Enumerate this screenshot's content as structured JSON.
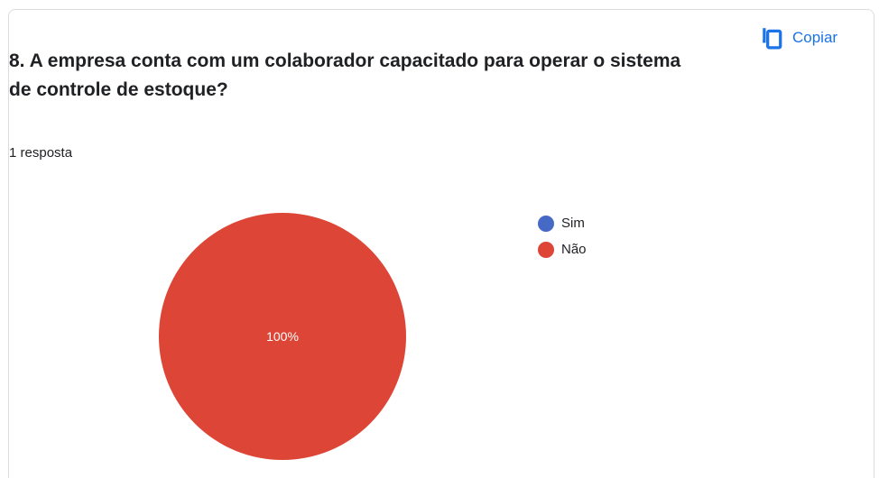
{
  "question": {
    "title": "8. A empresa conta com um colaborador capacitado para operar o sistema de controle de estoque?",
    "responses": "1 resposta"
  },
  "toolbar": {
    "copy_label": "Copiar",
    "copy_icon": "copy-icon"
  },
  "colors": {
    "accent": "#1a73e8",
    "sim": "#4569c4",
    "nao": "#dd4536"
  },
  "chart_data": {
    "type": "pie",
    "categories": [
      "Sim",
      "Não"
    ],
    "values": [
      0,
      1
    ],
    "data_labels": [
      "",
      "100%"
    ],
    "colors": [
      "#4569c4",
      "#dd4536"
    ],
    "legend": "right"
  }
}
